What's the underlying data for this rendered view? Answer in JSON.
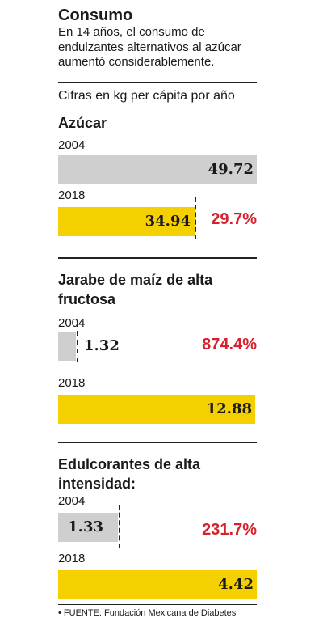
{
  "header": {
    "title": "Consumo",
    "subtitle": "En 14 años, el consumo de endulzantes alternativos al azúcar aumentó considerablemente.",
    "units": "Cifras en kg per cápita por año"
  },
  "chart_data": [
    {
      "type": "bar",
      "title": "Azúcar",
      "categories": [
        "2004",
        "2018"
      ],
      "values": [
        49.72,
        34.94
      ],
      "value_labels": [
        "49.72",
        "34.94"
      ],
      "change_label": "29.7%",
      "colors": [
        "#cfcfcf",
        "#f5d000"
      ]
    },
    {
      "type": "bar",
      "title": "Jarabe de maíz de alta fructosa",
      "categories": [
        "2004",
        "2018"
      ],
      "values": [
        1.32,
        12.88
      ],
      "value_labels": [
        "1.32",
        "12.88"
      ],
      "change_label": "874.4%",
      "colors": [
        "#cfcfcf",
        "#f5d000"
      ]
    },
    {
      "type": "bar",
      "title": "Edulcorantes de alta intensidad:",
      "categories": [
        "2004",
        "2018"
      ],
      "values": [
        1.33,
        4.42
      ],
      "value_labels": [
        "1.33",
        "4.42"
      ],
      "change_label": "231.7%",
      "colors": [
        "#cfcfcf",
        "#f5d000"
      ]
    }
  ],
  "footer": {
    "source": "FUENTE: Fundación Mexicana de Diabetes"
  }
}
